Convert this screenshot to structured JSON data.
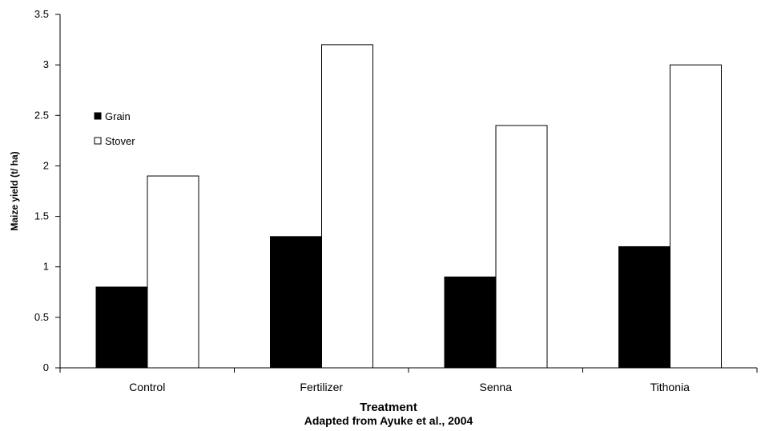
{
  "chart_data": {
    "type": "bar",
    "categories": [
      "Control",
      "Fertilizer",
      "Senna",
      "Tithonia"
    ],
    "series": [
      {
        "name": "Grain",
        "values": [
          0.8,
          1.3,
          0.9,
          1.2
        ],
        "color": "#000000"
      },
      {
        "name": "Stover",
        "values": [
          1.9,
          3.2,
          2.4,
          3.0
        ],
        "color": "#ffffff"
      }
    ],
    "xlabel": "Treatment",
    "caption": "Adapted from Ayuke et al., 2004",
    "ylabel": "Maize yield (t/ ha)",
    "ylim": [
      0,
      3.5
    ],
    "yticks": [
      "0",
      "0.5",
      "1",
      "1.5",
      "2",
      "2.5",
      "3",
      "3.5"
    ],
    "grid": false,
    "legend_position": "top-left"
  }
}
